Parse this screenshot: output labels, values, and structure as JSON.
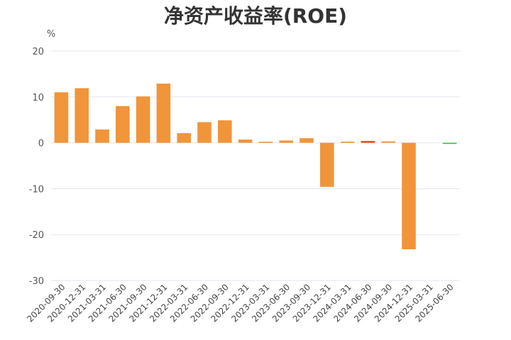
{
  "chart_data": {
    "type": "bar",
    "title": "净资产收益率(ROE)",
    "unit": "%",
    "ylim": [
      -30,
      20
    ],
    "yticks": [
      20,
      10,
      0,
      -10,
      -20,
      -30
    ],
    "grid": true,
    "categories": [
      "2020-09-30",
      "2020-12-31",
      "2021-03-31",
      "2021-06-30",
      "2021-09-30",
      "2021-12-31",
      "2022-03-31",
      "2022-06-30",
      "2022-09-30",
      "2022-12-31",
      "2023-03-31",
      "2023-06-30",
      "2023-09-30",
      "2023-12-31",
      "2024-03-31",
      "2024-06-30",
      "2024-09-30",
      "2024-12-31",
      "2025-03-31",
      "2025-06-30"
    ],
    "values": [
      11,
      11.9,
      2.9,
      8,
      10.1,
      12.9,
      2.1,
      4.5,
      4.9,
      0.7,
      0.2,
      0.5,
      1,
      -9.6,
      0.1,
      0.4,
      0.3,
      -23.2,
      null,
      -0.2
    ],
    "colors": {
      "default": "#f0953a",
      "highlight": "#e0531f",
      "latest": "#3dbf4a"
    },
    "bar_colors": [
      "default",
      "default",
      "default",
      "default",
      "default",
      "default",
      "default",
      "default",
      "default",
      "default",
      "default",
      "default",
      "default",
      "default",
      "default",
      "highlight",
      "default",
      "default",
      "default",
      "latest"
    ]
  }
}
